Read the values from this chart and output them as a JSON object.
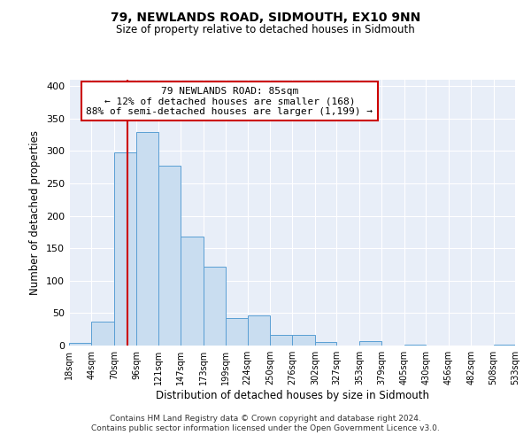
{
  "title": "79, NEWLANDS ROAD, SIDMOUTH, EX10 9NN",
  "subtitle": "Size of property relative to detached houses in Sidmouth",
  "xlabel": "Distribution of detached houses by size in Sidmouth",
  "ylabel": "Number of detached properties",
  "bin_edges": [
    18,
    44,
    70,
    96,
    121,
    147,
    173,
    199,
    224,
    250,
    276,
    302,
    327,
    353,
    379,
    405,
    430,
    456,
    482,
    508,
    533
  ],
  "bin_labels": [
    "18sqm",
    "44sqm",
    "70sqm",
    "96sqm",
    "121sqm",
    "147sqm",
    "173sqm",
    "199sqm",
    "224sqm",
    "250sqm",
    "276sqm",
    "302sqm",
    "327sqm",
    "353sqm",
    "379sqm",
    "405sqm",
    "430sqm",
    "456sqm",
    "482sqm",
    "508sqm",
    "533sqm"
  ],
  "bar_heights": [
    4,
    37,
    298,
    330,
    278,
    168,
    122,
    42,
    46,
    16,
    17,
    5,
    0,
    7,
    0,
    2,
    0,
    0,
    0,
    2
  ],
  "bar_facecolor": "#c9ddf0",
  "bar_edgecolor": "#5a9fd4",
  "property_value": 85,
  "vline_color": "#cc0000",
  "annotation_line1": "79 NEWLANDS ROAD: 85sqm",
  "annotation_line2": "← 12% of detached houses are smaller (168)",
  "annotation_line3": "88% of semi-detached houses are larger (1,199) →",
  "annotation_box_color": "#cc0000",
  "ylim": [
    0,
    410
  ],
  "yticks": [
    0,
    50,
    100,
    150,
    200,
    250,
    300,
    350,
    400
  ],
  "background_color": "#e8eef8",
  "grid_color": "#ffffff",
  "footer_line1": "Contains HM Land Registry data © Crown copyright and database right 2024.",
  "footer_line2": "Contains public sector information licensed under the Open Government Licence v3.0."
}
